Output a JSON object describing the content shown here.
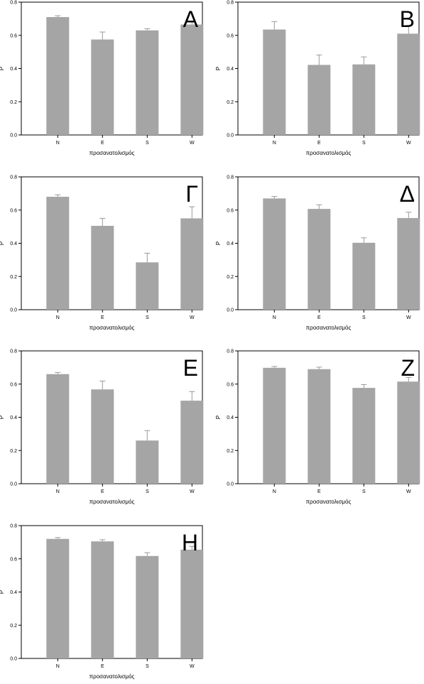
{
  "chart_data": [
    {
      "type": "bar",
      "panel_label": "Α",
      "categories": [
        "N",
        "E",
        "S",
        "W"
      ],
      "values": [
        0.71,
        0.575,
        0.63,
        0.665
      ],
      "errors": [
        0.008,
        0.045,
        0.01,
        0.015
      ],
      "xlabel": "προσανατολισμός",
      "ylabel": "P",
      "ylim": [
        0,
        0.8
      ],
      "yticks": [
        "0.0",
        "0.2",
        "0.4",
        "0.6",
        "0.8"
      ],
      "bar_color": "#a5a5a5",
      "grid": false,
      "legend": "none"
    },
    {
      "type": "bar",
      "panel_label": "Β",
      "categories": [
        "N",
        "E",
        "S",
        "W"
      ],
      "values": [
        0.635,
        0.422,
        0.425,
        0.61
      ],
      "errors": [
        0.048,
        0.06,
        0.045,
        0.05
      ],
      "xlabel": "προσανατολισμός",
      "ylabel": "P",
      "ylim": [
        0,
        0.8
      ],
      "yticks": [
        "0.0",
        "0.2",
        "0.4",
        "0.6",
        "0.8"
      ],
      "bar_color": "#a5a5a5",
      "grid": false,
      "legend": "none"
    },
    {
      "type": "bar",
      "panel_label": "Γ",
      "categories": [
        "N",
        "E",
        "S",
        "W"
      ],
      "values": [
        0.68,
        0.505,
        0.285,
        0.55
      ],
      "errors": [
        0.012,
        0.045,
        0.055,
        0.07
      ],
      "xlabel": "προσανατολισμός",
      "ylabel": "P",
      "ylim": [
        0,
        0.8
      ],
      "yticks": [
        "0.0",
        "0.2",
        "0.4",
        "0.6",
        "0.8"
      ],
      "bar_color": "#a5a5a5",
      "grid": false,
      "legend": "none"
    },
    {
      "type": "bar",
      "panel_label": "Δ",
      "categories": [
        "N",
        "E",
        "S",
        "W"
      ],
      "values": [
        0.67,
        0.607,
        0.403,
        0.552
      ],
      "errors": [
        0.012,
        0.025,
        0.03,
        0.035
      ],
      "xlabel": "προσανατολισμός",
      "ylabel": "P",
      "ylim": [
        0,
        0.8
      ],
      "yticks": [
        "0.0",
        "0.2",
        "0.4",
        "0.6",
        "0.8"
      ],
      "bar_color": "#a5a5a5",
      "grid": false,
      "legend": "none"
    },
    {
      "type": "bar",
      "panel_label": "Ε",
      "categories": [
        "N",
        "E",
        "S",
        "W"
      ],
      "values": [
        0.66,
        0.568,
        0.26,
        0.5
      ],
      "errors": [
        0.01,
        0.05,
        0.06,
        0.055
      ],
      "xlabel": "προσανατολισμός",
      "ylabel": "P",
      "ylim": [
        0,
        0.8
      ],
      "yticks": [
        "0.0",
        "0.2",
        "0.4",
        "0.6",
        "0.8"
      ],
      "bar_color": "#a5a5a5",
      "grid": false,
      "legend": "none"
    },
    {
      "type": "bar",
      "panel_label": "Ζ",
      "categories": [
        "N",
        "E",
        "S",
        "W"
      ],
      "values": [
        0.698,
        0.69,
        0.577,
        0.615
      ],
      "errors": [
        0.008,
        0.012,
        0.02,
        0.025
      ],
      "xlabel": "προσανατολισμός",
      "ylabel": "P",
      "ylim": [
        0,
        0.8
      ],
      "yticks": [
        "0.0",
        "0.2",
        "0.4",
        "0.6",
        "0.8"
      ],
      "bar_color": "#a5a5a5",
      "grid": false,
      "legend": "none"
    },
    {
      "type": "bar",
      "panel_label": "Η",
      "categories": [
        "N",
        "E",
        "S",
        "W"
      ],
      "values": [
        0.72,
        0.705,
        0.617,
        0.655
      ],
      "errors": [
        0.008,
        0.01,
        0.02,
        0.02
      ],
      "xlabel": "προσανατολισμός",
      "ylabel": "P",
      "ylim": [
        0,
        0.8
      ],
      "yticks": [
        "0.0",
        "0.2",
        "0.4",
        "0.6",
        "0.8"
      ],
      "bar_color": "#a5a5a5",
      "grid": false,
      "legend": "none"
    }
  ]
}
